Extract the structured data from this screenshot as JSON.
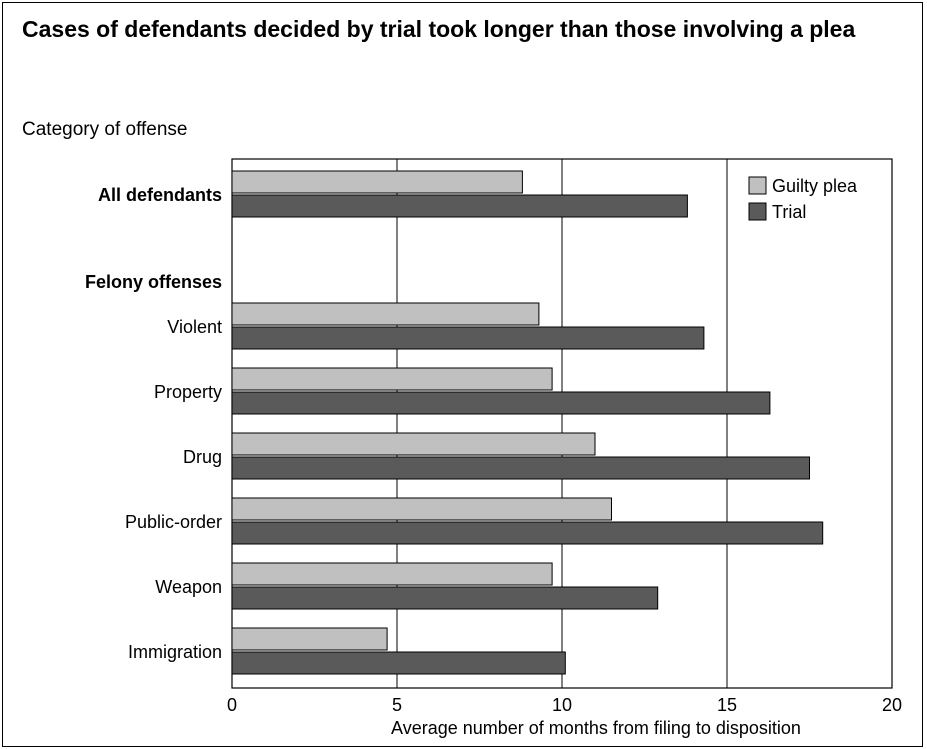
{
  "chart_data": {
    "type": "bar",
    "orientation": "horizontal",
    "title": "Cases of defendants decided by trial took longer than those involving a plea",
    "ylabel": "Category of offense",
    "xlabel": "Average number of months from filing to disposition",
    "xlim": [
      0,
      20
    ],
    "xticks": [
      0,
      5,
      10,
      15,
      20
    ],
    "grid": true,
    "legend_position": "top-right",
    "rows": [
      {
        "label": "All defendants",
        "bold": true,
        "indent": false,
        "has_data": true
      },
      {
        "label": "Felony offenses",
        "bold": true,
        "indent": false,
        "has_data": false
      },
      {
        "label": "Violent",
        "bold": false,
        "indent": true,
        "has_data": true
      },
      {
        "label": "Property",
        "bold": false,
        "indent": true,
        "has_data": true
      },
      {
        "label": "Drug",
        "bold": false,
        "indent": true,
        "has_data": true
      },
      {
        "label": "Public-order",
        "bold": false,
        "indent": true,
        "has_data": true
      },
      {
        "label": "Weapon",
        "bold": false,
        "indent": true,
        "has_data": true
      },
      {
        "label": "Immigration",
        "bold": false,
        "indent": true,
        "has_data": true
      }
    ],
    "categories": [
      "All defendants",
      "Violent",
      "Property",
      "Drug",
      "Public-order",
      "Weapon",
      "Immigration"
    ],
    "series": [
      {
        "name": "Guilty plea",
        "color": "#c0c0c0",
        "values": [
          8.8,
          9.3,
          9.7,
          11.0,
          11.5,
          9.7,
          4.7
        ]
      },
      {
        "name": "Trial",
        "color": "#5a5a5a",
        "values": [
          13.8,
          14.3,
          16.3,
          17.5,
          17.9,
          12.9,
          10.1
        ]
      }
    ]
  }
}
